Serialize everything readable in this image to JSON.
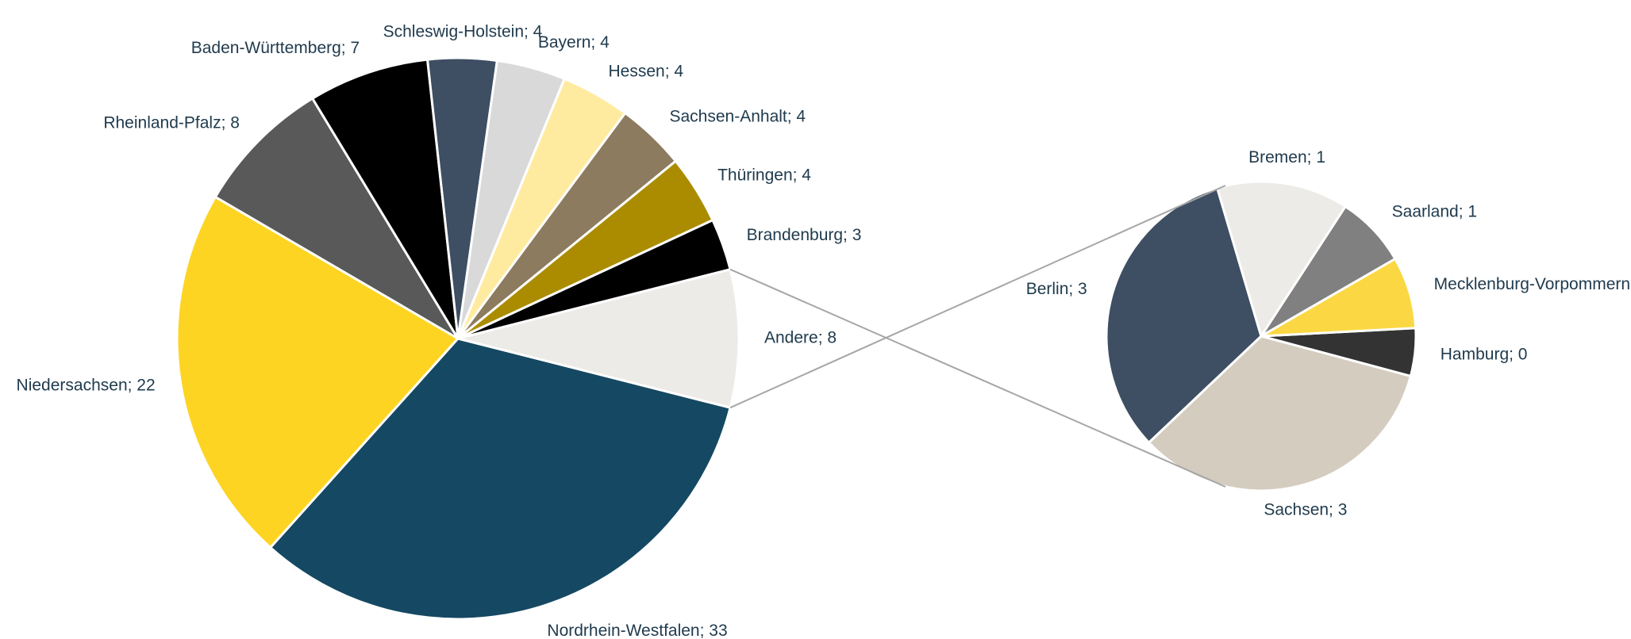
{
  "chart_data": [
    {
      "type": "pie",
      "labels": [
        "Nordrhein-Westfalen; 33",
        "Niedersachsen; 22",
        "Rheinland-Pfalz; 8",
        "Baden-Württemberg; 7",
        "Schleswig-Holstein; 4",
        "Bayern; 4",
        "Hessen; 4",
        "Sachsen-Anhalt; 4",
        "Thüringen; 4",
        "Brandenburg; 3",
        "Andere; 8"
      ],
      "values": [
        33,
        22,
        8,
        7,
        4,
        4,
        4,
        4,
        4,
        3,
        8
      ],
      "colors": [
        "#154862",
        "#fdd422",
        "#595959",
        "#000000",
        "#3e4e63",
        "#d9d9d9",
        "#ffeba0",
        "#8d7b5f",
        "#ab8c00",
        "#000000",
        "#edebe7"
      ]
    },
    {
      "type": "pie",
      "labels": [
        "Hamburg; 0",
        "Sachsen; 3",
        "Berlin; 3",
        "Bremen; 1",
        "Saarland; 1",
        "Mecklenburg-Vorpommern; 1"
      ],
      "values": [
        0.4,
        2.7,
        2.6,
        1.1,
        0.6,
        0.6
      ],
      "colors": [
        "#333333",
        "#d4ccbf",
        "#3e4e63",
        "#edebe7",
        "#808080",
        "#fbd843"
      ]
    }
  ]
}
